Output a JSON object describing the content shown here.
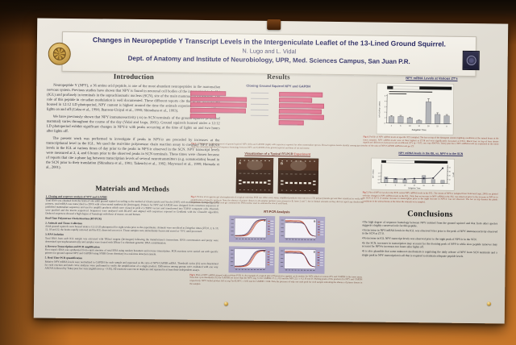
{
  "poster": {
    "header": {
      "title": "Changes in Neuropeptide Y Transcript Levels in the Intergeniculate Leaflet of the 13-Lined Ground Squirrel.",
      "authors": "N. Lugo and L. Vidal",
      "affiliation": "Dept. of Anatomy and Institute of Neurobiology, UPR, Med. Sciences Campus, San Juan P.R."
    },
    "introduction": {
      "heading": "Introduction",
      "paragraphs": [
        "Neuropeptide Y (NPY), a 36 amino acid peptide, is one of the most abundant neuropeptides in the mammalian nervous system. Previous studies have shown that NPY is found in neuronal cell bodies of the intergeniculate leaflet (IGL) and profusely in terminals in the suprachiasmatic nucleus (SCN), site of the main mammalian pacemaker. The role of this peptide in circadian modulation is well documented. These different reports cite that in the SCN of rats housed in 12:12 LD photoperiod, NPY content is highest around the time the animals experience the switching of lights on and off (Calza et al., 1990; Jhanwar-Uniyal et al., 1990; Shinohara et al., 1993).",
        "We have previously shown that NPY immunoreactivity (-ir) in SCN terminals of the ground squirrel (a diurnal mammal) varies throughout the course of the day (Vidal and Lugo, 2001). Ground squirrels housed under a 12:12 LD photoperiod exhibit significant changes in NPY-ir with peaks occurring at the time of lights on and two hours after lights off.",
        "The present work was performed to investigate if peaks in NPY-ir are preceded by increases at the transcriptional level in the IGL. We used the real-time polymerase chain reaction assay to measure NPY mRNA levels in the IGL at various times of day prior to the peaks in NPY-ir observed in the SCN. NPY transcript levels were measured at 2, 4, and 6 hours prior to the observed peaks in SCN terminals. These times were chosen because of reports that cite a phase lag between transcription levels of several neurotransmitters (e.g. somatostatin) found in the SCN prior to their translation (Shinohara et al., 1991; Takeuchi et al., 1992; Maywood et al., 1999; Hamada et al., 2001)."
      ]
    },
    "methods": {
      "heading": "Materials and Methods",
      "sections": [
        {
          "title": "1. Cloning and sequence analysis of NPY and GAPDH",
          "body": "Total RNA was obtained from the brain of one adult ground squirrel according to the method of Chomczynski and Sacchi (1987) with modifications. Using oligo (dT) primers, total mRNA was transcribed to cDNA with a first strand synthesis kit (Invitrogen). Primers for NPY and GAPDH were designed from consensus sequences of published mammalian sequences and used to amplify products which were cloned in pCR 2.1-TOPO vectors and transformed into TOP10 competent cells. Plasmids were purified and the inserts sequenced. Sequences were analyzed with BLAST and aligned with sequences reported in GenBank with the ClustalW algorithm. Deduced sequences showed a high degree of homology with those of mouse, rat and human."
        },
        {
          "title": "Real-Time Polymerase Chain Reaction (RT-PCR)",
          "body": ""
        },
        {
          "title": "2. Animals and Tissue Collection",
          "body": "Adult ground squirrels were housed under a 12:12 LD photoperiod for eight weeks prior to the experiments. Animals were sacrificed at Zeitgeber times (ZT) 0, 2, 6, 10, 12, 18 and 22, the brains rapidly removed and the IGL dissected out on ice. Tissue samples were immediately frozen and stored at -70°C until processed."
        },
        {
          "title": "3. RNA isolation",
          "body": "Total RNA from each IGL sample was extracted with TRIzol reagent (Invitrogen) following the manufacturer's instructions. RNA concentration and purity were determined spectrophotometrically and samples were treated with DNase I to eliminate genomic DNA contamination."
        },
        {
          "title": "4. Reverse Transcription and PCR amplification",
          "body": "First strand cDNA was synthesized from equal amounts of total RNA using random hexamers and reverse transcriptase. PCR reactions were carried out with specific primers for ground squirrel NPY and GAPDH using SYBR Green chemistry in a real-time detection system."
        },
        {
          "title": "5. Real-Time PCR quantification",
          "body": "Relative NPY mRNA levels were normalized to GAPDH for each sample and expressed as the ratio of NPY/GAPDH mRNA. Threshold cycles (Ct) were determined for each reaction and melt curve analyses were performed to verify the amplification of a single product. Differences among groups were evaluated with one way ANOVA followed by Tukey post hoc tests (significance p < 0.05). All reactions were run in duplicate and repeated in at least three independent assays."
        }
      ]
    },
    "results": {
      "heading": "Results",
      "cloning_heading": "Cloning Ground Squirrel NPY and GAPDH",
      "fig1_label": "Fig 1.",
      "fig1_caption_rest": " Aligned nucleotide sequences of ground squirrel NPY (left) and GAPDH (right) with sequences reported for other mammalian species. Boxed regions denote identity among species. Note the extremely high level of sequence homology between NPY and GAPDH of the ground squirrel and those of rat and mouse.",
      "viz_heading_main": "Visualization of a Typical RT-PCR ",
      "viz_heading_accent": "Experiment",
      "gel_labels": [
        "A",
        "B"
      ],
      "fig2_label": "Fig 2.",
      "fig2_caption_rest": " Picture of an agarose gel electrophoresis of a typical real-time PCR run. After every assay, amplified products were run on a 1.5% polyacrylamide gel and then visualized to verify the amplification of specific products. Note the absence of primer dimers in all samples (primers were present in B, lanes 2 and 7, but in limited amounts as they did not report any shadowing amplification). Lanes 1 and 8 of each gel contained the DNA marker used to estimate the size of each band.",
      "rtpcr_heading": "RT-PCR Analysis",
      "fig3_label": "Fig 3.",
      "fig3_caption_rest": " Plots of NPY mRNA assayed with real-time PCR. A. An example of a typical plot of fluorescence against cycle number for NPY added at various ZT's and GAPDH in the same assay. Note that cycle thresholds (Ct) for GAPDH are lower than the NPY avg. Ct for GAPDH 17.1 ± 0.2 and the NPY 22.1 ± 0.2. B and D. Melting peaks of the products for NPY and GAPDH respectively. NPY melted product fell at avg Tm 85.09°C ± 0.03 and for GAPDH ± 0.04. Note the presence of only one melt peak for each sample indicating the absence of primer dimers in the samples."
    },
    "figures_right": {
      "fig4_label": "Fig 4.",
      "fig4_caption_rest": " Profile of NPY mRNA levels at specific ZT's sampled. The bar on top of the histogram denotes lighting conditions at the animal house at the times sampled. NPY mRNA levels were at their highest at ZT18 and were significantly decreased at ZT12. Black lines on top of bars denote significant differences between levels at different ZT's (p < 0.05, one way ANOVA, Tukey post hoc). NPY mRNA levels are expressed as the mean value of the ratio of NPY/GAPDH mRNA levels per ZT.",
      "fig5_label": "Fig 5.",
      "fig5_caption_rest": " Plot of NPY-ir levels in the SCN versus NPY mRNA levels in the IGL. The means of NPY-ir (adapted from Vidal and Lugo, 2001) are plotted with the changes in NPY mRNA levels in the IGL. Note that an increase in NPY mRNA in the IGL was observed prior to the increase in NPY-ir in the SCN at ZT 0. A similar increase in transcription prior to the night increase in NPY-ir was not observed. The bar on top denotes the photic conditions in the animal house at the times the animals were sampled."
    },
    "conclusions": {
      "heading": "Conclusions",
      "bullets": [
        "The high degree of sequence homology between NPY isolated from the ground squirrel and that from other species suggests a highly conserved role for this peptide.",
        "An increase in NPY mRNA levels in the IGL was observed 6 hrs prior to the peak of NPY immunoreactivity observed in the SCN at ZT 0.",
        "No increase in IGL NPY transcript levels was observed prior to the night peak of NPY-ir in the SCN.",
        "In the SCN, increases in transcription may account for the morning peak of NPY-ir while slow peptide turnover may account for NPY-ir increases two hours after lights off.",
        "It is also plausible that some unknown mechanism is regulating the daily release of NPY from SCN terminals and a single peak in NPY transcription is all that is required to maintain adequate peptide levels."
      ]
    }
  },
  "alignment": {
    "left_rows": [
      0.58,
      0.95,
      0.95,
      0.93,
      0.42
    ],
    "right_rows": [
      0.92,
      0.7,
      0.96,
      0.9,
      0.96,
      0.52
    ]
  },
  "gels": {
    "panels": [
      {
        "label": "A",
        "lanes": 8,
        "width": 46
      },
      {
        "label": "B",
        "lanes": 8,
        "width": 50
      }
    ]
  },
  "chart_data": [
    {
      "id": "fig4",
      "type": "bar",
      "title": "NPY mRNA Levels at Various ZT's",
      "categories": [
        "2",
        "6",
        "10",
        "12",
        "18",
        "22",
        "0"
      ],
      "values": [
        1.2,
        1.25,
        1.0,
        0.55,
        4.0,
        1.7,
        1.45
      ],
      "errors": [
        0.2,
        0.2,
        0.15,
        0.1,
        0.55,
        0.3,
        0.25
      ],
      "xlabel": "Zeitgeber Time",
      "ylabel": "NPY/GAPDH mRNA",
      "ylim": [
        0,
        5
      ],
      "dark_segments": [
        [
          0.0,
          0.09
        ],
        [
          0.5,
          1.0
        ]
      ],
      "sig_lines": [
        [
          0.03,
          0.7
        ],
        [
          0.03,
          0.3
        ]
      ],
      "legend_position": "none",
      "grid": false
    },
    {
      "id": "fig5",
      "type": "bar+line",
      "title": "NPY mRNA levels in the IGL vs. NPY-ir in the SCN",
      "categories": [
        "2",
        "6",
        "10",
        "12",
        "18",
        "22",
        "0"
      ],
      "bar_series_name": "NPY mRNA (IGL)",
      "bar_values": [
        0.9,
        0.7,
        0.5,
        0.45,
        1.2,
        0.6,
        0.5
      ],
      "line_series_name": "NPY-ir (SCN)",
      "line_values": [
        11,
        10,
        10,
        11,
        12,
        13,
        38
      ],
      "xlabel": "Zeitgeber Time",
      "left_ylabel": "NPY mRNA",
      "right_ylabel": "NPY-ir",
      "left_ylim": [
        0,
        1.5
      ],
      "right_ylim": [
        0,
        40
      ],
      "dark_segments": [
        [
          0.0,
          0.07
        ],
        [
          0.5,
          1.0
        ]
      ],
      "grid": false
    },
    {
      "id": "fig3_panels",
      "type": "line",
      "panels": [
        {
          "label": "A",
          "kind": "amplification",
          "xlabel": "Cycle number",
          "ylabel": "Fluorescence"
        },
        {
          "label": "B",
          "kind": "melt",
          "xlabel": "Temperature",
          "ylabel": "-dF/dT"
        },
        {
          "label": "C",
          "kind": "amplification",
          "xlabel": "Cycle number",
          "ylabel": "Fluorescence"
        },
        {
          "label": "D",
          "kind": "melt",
          "xlabel": "Temperature",
          "ylabel": "-dF/dT"
        }
      ],
      "series_colors": [
        "#b5302a",
        "#d4722a",
        "#7a2c4e",
        "#3a2a52"
      ]
    }
  ],
  "colors": {
    "cork_orange": "#b2641f",
    "poster_paper": "#ded9cf",
    "title_navy": "#1d1d5a",
    "sequence_pink": "#dd6184",
    "figure_caption_red": "#8a3524",
    "graph_panel_lavender": "#aaa4c4",
    "bar_gray": "#b0b2b6",
    "gel_dark": "#2a1309",
    "seal_gold": "#d9b25f"
  }
}
